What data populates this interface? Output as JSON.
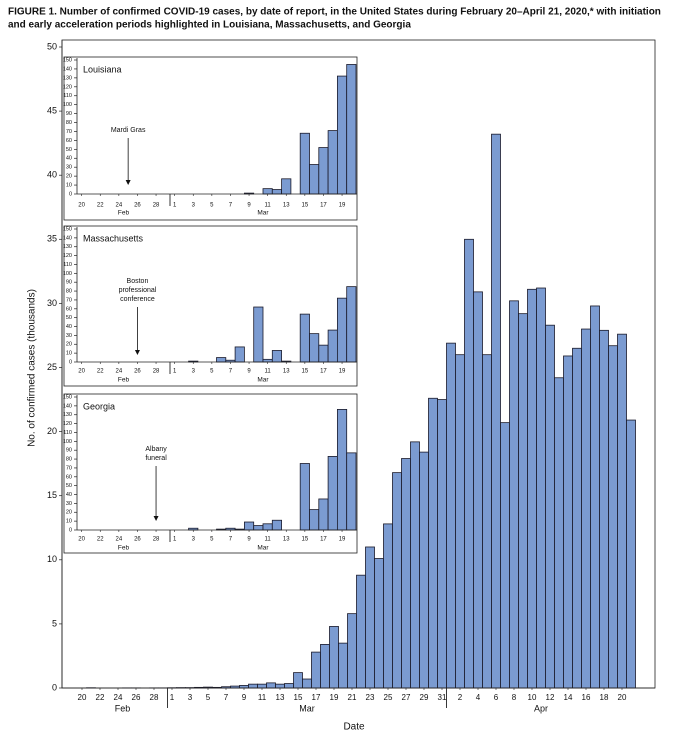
{
  "chart_data": [
    {
      "type": "bar",
      "title": [
        "FIGURE 1. Number of confirmed COVID-19 cases, by date of report, in the United States during February 20–April 21, 2020,* with initiation",
        "and early acceleration periods highlighted in Louisiana, Massachusetts, and Georgia"
      ],
      "xlabel": "Date",
      "ylabel": "No. of confirmed cases (thousands)",
      "color": "#7b9bd1",
      "categories": [
        "20",
        null,
        "22",
        null,
        "24",
        null,
        "26",
        null,
        "28",
        null,
        "1",
        null,
        "3",
        null,
        "5",
        null,
        "7",
        null,
        "9",
        null,
        "11",
        null,
        "13",
        null,
        "15",
        null,
        "17",
        null,
        "19",
        null,
        "21",
        null,
        "23",
        null,
        "25",
        null,
        "27",
        null,
        "29",
        null,
        "31",
        null,
        "2",
        null,
        "4",
        null,
        "6",
        null,
        "8",
        null,
        "10",
        null,
        "12",
        null,
        "14",
        null,
        "16",
        null,
        "18",
        null,
        "20",
        null
      ],
      "values": [
        0,
        0.02,
        0,
        0,
        0,
        0.01,
        0.01,
        0,
        0.01,
        0.01,
        0.02,
        0.03,
        0.03,
        0.05,
        0.07,
        0.05,
        0.1,
        0.15,
        0.2,
        0.3,
        0.3,
        0.4,
        0.3,
        0.35,
        1.2,
        0.7,
        2.8,
        3.4,
        4.8,
        3.5,
        5.8,
        8.8,
        11.0,
        10.1,
        12.8,
        16.8,
        17.9,
        19.2,
        18.4,
        22.6,
        22.5,
        26.9,
        26.0,
        35.0,
        30.9,
        26.0,
        43.2,
        20.7,
        30.2,
        29.2,
        31.1,
        31.2,
        28.3,
        24.2,
        25.9,
        26.5,
        28.0,
        29.8,
        27.9,
        26.7,
        27.6,
        20.9
      ],
      "months": [
        "Feb",
        "Mar",
        "Apr"
      ],
      "ylim": [
        0,
        50
      ],
      "yticks": [
        0,
        5,
        10,
        15,
        20,
        25,
        30,
        35,
        40,
        45,
        50
      ]
    },
    {
      "type": "bar",
      "title": "Louisiana",
      "annotation": [
        "Mardi Gras"
      ],
      "color": "#7b9bd1",
      "categories": [
        "20",
        null,
        "22",
        null,
        "24",
        null,
        "26",
        null,
        "28",
        null,
        "1",
        null,
        "3",
        null,
        "5",
        null,
        "7",
        null,
        "9",
        null,
        "11",
        null,
        "13",
        null,
        "15",
        null,
        "17",
        null,
        "19",
        null
      ],
      "values": [
        0,
        0,
        0,
        0,
        0,
        0,
        0,
        0,
        0,
        0,
        0,
        0,
        0,
        0,
        0,
        0,
        0,
        0,
        1,
        0,
        6,
        5,
        17,
        0,
        68,
        33,
        52,
        71,
        132,
        145
      ],
      "months": [
        "Feb",
        "Mar"
      ],
      "ylim": [
        0,
        150
      ],
      "yticks": [
        0,
        10,
        20,
        30,
        40,
        50,
        60,
        70,
        80,
        90,
        100,
        110,
        120,
        130,
        140,
        150
      ]
    },
    {
      "type": "bar",
      "title": "Massachusetts",
      "annotation": [
        "Boston",
        "professional",
        "conference"
      ],
      "color": "#7b9bd1",
      "categories": [
        "20",
        null,
        "22",
        null,
        "24",
        null,
        "26",
        null,
        "28",
        null,
        "1",
        null,
        "3",
        null,
        "5",
        null,
        "7",
        null,
        "9",
        null,
        "11",
        null,
        "13",
        null,
        "15",
        null,
        "17",
        null,
        "19",
        null
      ],
      "values": [
        0,
        0,
        0,
        0,
        0,
        0,
        0,
        0,
        0,
        0,
        0,
        0,
        1,
        0,
        0,
        5,
        2,
        17,
        0,
        62,
        3,
        13,
        1,
        0,
        54,
        32,
        19,
        36,
        72,
        85
      ],
      "months": [
        "Feb",
        "Mar"
      ],
      "ylim": [
        0,
        150
      ],
      "yticks": [
        0,
        10,
        20,
        30,
        40,
        50,
        60,
        70,
        80,
        90,
        100,
        110,
        120,
        130,
        140,
        150
      ]
    },
    {
      "type": "bar",
      "title": "Georgia",
      "annotation": [
        "Albany",
        "funeral"
      ],
      "color": "#7b9bd1",
      "categories": [
        "20",
        null,
        "22",
        null,
        "24",
        null,
        "26",
        null,
        "28",
        null,
        "1",
        null,
        "3",
        null,
        "5",
        null,
        "7",
        null,
        "9",
        null,
        "11",
        null,
        "13",
        null,
        "15",
        null,
        "17",
        null,
        "19",
        null
      ],
      "values": [
        0,
        0,
        0,
        0,
        0,
        0,
        0,
        0,
        0,
        0,
        0,
        0,
        2,
        0,
        0,
        1,
        2,
        1,
        9,
        5,
        7,
        11,
        0,
        0,
        75,
        23,
        35,
        83,
        136,
        87
      ],
      "months": [
        "Feb",
        "Mar"
      ],
      "ylim": [
        0,
        150
      ],
      "yticks": [
        0,
        10,
        20,
        30,
        40,
        50,
        60,
        70,
        80,
        90,
        100,
        110,
        120,
        130,
        140,
        150
      ]
    }
  ]
}
